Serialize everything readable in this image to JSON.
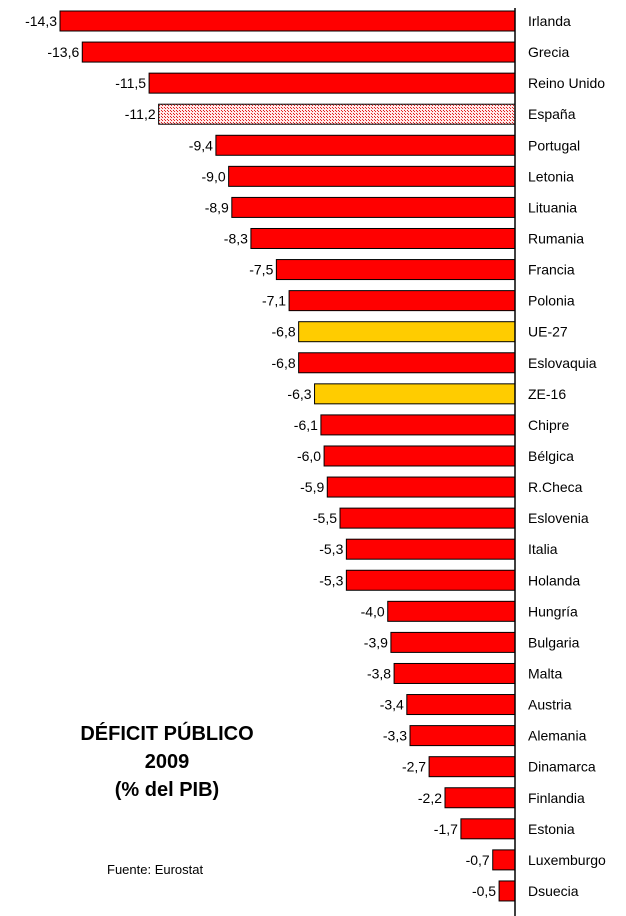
{
  "chart_data": {
    "type": "bar",
    "orientation": "horizontal",
    "title": [
      "DÉFICIT PÚBLICO",
      "2009",
      "(% del PIB)"
    ],
    "source": "Fuente: Eurostat",
    "value_min": -14.3,
    "value_max": 0,
    "colors": {
      "default": "#ff0000",
      "spain": "hatched red",
      "aggregate": "#ffcc00"
    },
    "categories": [
      "Irlanda",
      "Grecia",
      "Reino Unido",
      "España",
      "Portugal",
      "Letonia",
      "Lituania",
      "Rumania",
      "Francia",
      "Polonia",
      "UE-27",
      "Eslovaquia",
      "ZE-16",
      "Chipre",
      "Bélgica",
      "R.Checa",
      "Eslovenia",
      "Italia",
      "Holanda",
      "Hungría",
      "Bulgaria",
      "Malta",
      "Austria",
      "Alemania",
      "Dinamarca",
      "Finlandia",
      "Estonia",
      "Luxemburgo",
      "Dsuecia"
    ],
    "values": [
      -14.3,
      -13.6,
      -11.5,
      -11.2,
      -9.4,
      -9.0,
      -8.9,
      -8.3,
      -7.5,
      -7.1,
      -6.8,
      -6.8,
      -6.3,
      -6.1,
      -6.0,
      -5.9,
      -5.5,
      -5.3,
      -5.3,
      -4.0,
      -3.9,
      -3.8,
      -3.4,
      -3.3,
      -2.7,
      -2.2,
      -1.7,
      -0.7,
      -0.5
    ],
    "value_labels": [
      "-14,3",
      "-13,6",
      "-11,5",
      "-11,2",
      "-9,4",
      "-9,0",
      "-8,9",
      "-8,3",
      "-7,5",
      "-7,1",
      "-6,8",
      "-6,8",
      "-6,3",
      "-6,1",
      "-6,0",
      "-5,9",
      "-5,5",
      "-5,3",
      "-5,3",
      "-4,0",
      "-3,9",
      "-3,8",
      "-3,4",
      "-3,3",
      "-2,7",
      "-2,2",
      "-1,7",
      "-0,7",
      "-0,5"
    ],
    "styles": [
      "default",
      "default",
      "default",
      "hatch",
      "default",
      "default",
      "default",
      "default",
      "default",
      "default",
      "aggregate",
      "default",
      "aggregate",
      "default",
      "default",
      "default",
      "default",
      "default",
      "default",
      "default",
      "default",
      "default",
      "default",
      "default",
      "default",
      "default",
      "default",
      "default",
      "default"
    ]
  }
}
